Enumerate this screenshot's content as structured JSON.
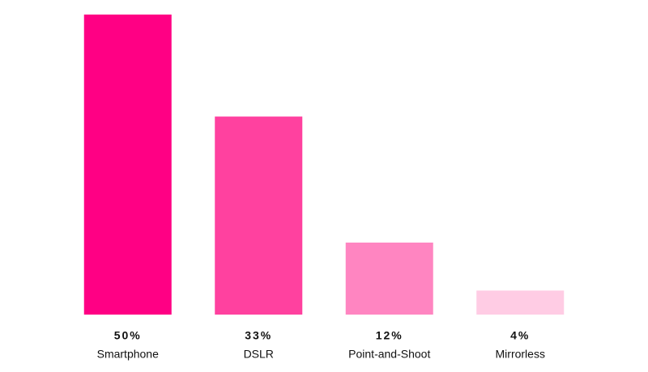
{
  "chart_data": {
    "type": "bar",
    "categories": [
      "Smartphone",
      "DSLR",
      "Point-and-Shoot",
      "Mirrorless"
    ],
    "values": [
      50,
      33,
      12,
      4
    ],
    "value_labels": [
      "50%",
      "33%",
      "12%",
      "4%"
    ],
    "colors": [
      "#ff0084",
      "#ff419f",
      "#ff85c1",
      "#ffcce4"
    ]
  }
}
